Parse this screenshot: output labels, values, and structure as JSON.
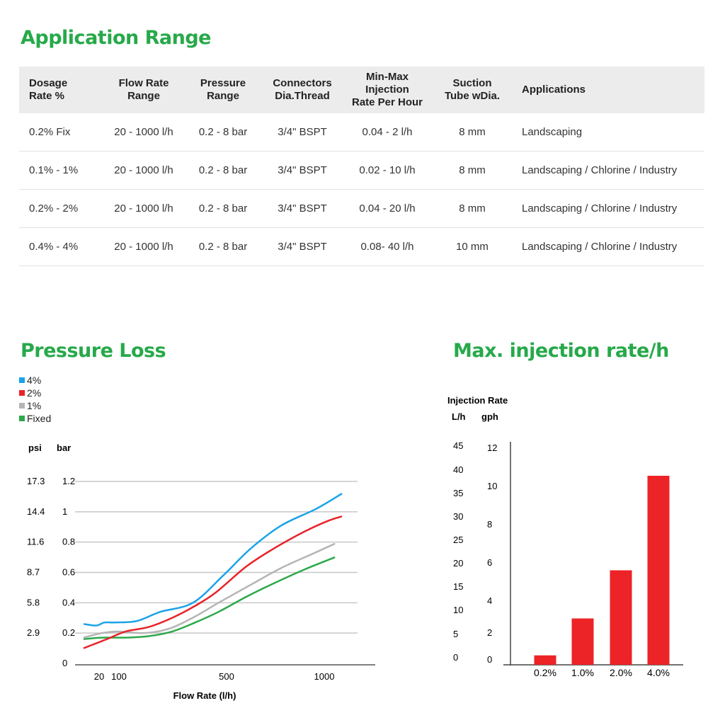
{
  "headings": {
    "application_range": "Application Range",
    "pressure_loss": "Pressure Loss",
    "max_injection": "Max. injection rate/h"
  },
  "table": {
    "headers": [
      [
        "Dosage",
        "Rate %"
      ],
      [
        "Flow Rate",
        "Range"
      ],
      [
        "Pressure",
        "Range"
      ],
      [
        "Connectors",
        "Dia.Thread"
      ],
      [
        "Min-Max",
        "Injection",
        "Rate Per Hour"
      ],
      [
        "Suction",
        "Tube wDia."
      ],
      [
        "Applications"
      ]
    ],
    "rows": [
      [
        "0.2% Fix",
        "20 - 1000 l/h",
        "0.2 - 8 bar",
        "3/4\"  BSPT",
        "0.04 - 2 l/h",
        "8 mm",
        "Landscaping"
      ],
      [
        "0.1% - 1%",
        "20 - 1000 l/h",
        "0.2 - 8 bar",
        "3/4\"  BSPT",
        "0.02 - 10 l/h",
        "8 mm",
        "Landscaping / Chlorine / Industry"
      ],
      [
        "0.2% - 2%",
        "20 - 1000 l/h",
        "0.2 - 8 bar",
        "3/4\"  BSPT",
        "0.04 - 20 l/h",
        "8 mm",
        "Landscaping / Chlorine / Industry"
      ],
      [
        "0.4% - 4%",
        "20 - 1000 l/h",
        "0.2 - 8 bar",
        "3/4\"  BSPT",
        "0.08- 40 l/h",
        "10 mm",
        "Landscaping / Chlorine / Industry"
      ]
    ]
  },
  "chart_data": [
    {
      "type": "line",
      "title": "Pressure Loss",
      "xlabel": "Flow Rate (l/h)",
      "ylabel_left": "psi",
      "ylabel_right": "bar",
      "x_ticks": [
        "20",
        "100",
        "500",
        "1000"
      ],
      "y_ticks_bar": [
        "0",
        "0.2",
        "0.4",
        "0.6",
        "0.8",
        "1",
        "1.2"
      ],
      "y_ticks_psi": [
        "",
        "2.9",
        "5.8",
        "8.7",
        "11.6",
        "14.4",
        "17.3"
      ],
      "ylim": [
        0,
        1.2
      ],
      "grid": true,
      "legend_position": "top-left",
      "series": [
        {
          "name": "4%",
          "color": "#1aa3e8",
          "points": [
            [
              0,
              0.26
            ],
            [
              55,
              0.25
            ],
            [
              90,
              0.27
            ],
            [
              140,
              0.27
            ],
            [
              230,
              0.28
            ],
            [
              330,
              0.34
            ],
            [
              470,
              0.4
            ],
            [
              600,
              0.58
            ],
            [
              720,
              0.76
            ],
            [
              850,
              0.91
            ],
            [
              1000,
              1.02
            ],
            [
              1110,
              1.12
            ]
          ]
        },
        {
          "name": "2%",
          "color": "#e8232a",
          "points": [
            [
              0,
              0.1
            ],
            [
              100,
              0.16
            ],
            [
              180,
              0.21
            ],
            [
              280,
              0.24
            ],
            [
              380,
              0.3
            ],
            [
              480,
              0.38
            ],
            [
              570,
              0.47
            ],
            [
              700,
              0.64
            ],
            [
              820,
              0.76
            ],
            [
              950,
              0.87
            ],
            [
              1050,
              0.94
            ],
            [
              1110,
              0.97
            ]
          ]
        },
        {
          "name": "1%",
          "color": "#b5b5b5",
          "points": [
            [
              0,
              0.17
            ],
            [
              80,
              0.2
            ],
            [
              150,
              0.21
            ],
            [
              260,
              0.2
            ],
            [
              370,
              0.23
            ],
            [
              480,
              0.31
            ],
            [
              580,
              0.4
            ],
            [
              720,
              0.52
            ],
            [
              850,
              0.63
            ],
            [
              980,
              0.72
            ],
            [
              1080,
              0.79
            ]
          ]
        },
        {
          "name": "Fixed",
          "color": "#2da84b",
          "points": [
            [
              0,
              0.16
            ],
            [
              80,
              0.17
            ],
            [
              180,
              0.17
            ],
            [
              280,
              0.18
            ],
            [
              380,
              0.21
            ],
            [
              480,
              0.27
            ],
            [
              580,
              0.34
            ],
            [
              700,
              0.44
            ],
            [
              820,
              0.53
            ],
            [
              950,
              0.62
            ],
            [
              1080,
              0.7
            ]
          ]
        }
      ]
    },
    {
      "type": "bar",
      "title": "Max. injection rate/h",
      "ylabel": "Injection Rate",
      "ylabel_left": "L/h",
      "ylabel_right": "gph",
      "y_ticks_lh": [
        "0",
        "5",
        "10",
        "15",
        "20",
        "25",
        "30",
        "35",
        "40",
        "45"
      ],
      "y_ticks_gph": [
        "0",
        "2",
        "4",
        "6",
        "8",
        "10",
        "12"
      ],
      "ylim_gph": [
        0,
        12
      ],
      "categories": [
        "0.2%",
        "1.0%",
        "2.0%",
        "4.0%"
      ],
      "values_gph": [
        0.53,
        2.6,
        5.3,
        10.6
      ],
      "bar_color": "#ec2327"
    }
  ]
}
